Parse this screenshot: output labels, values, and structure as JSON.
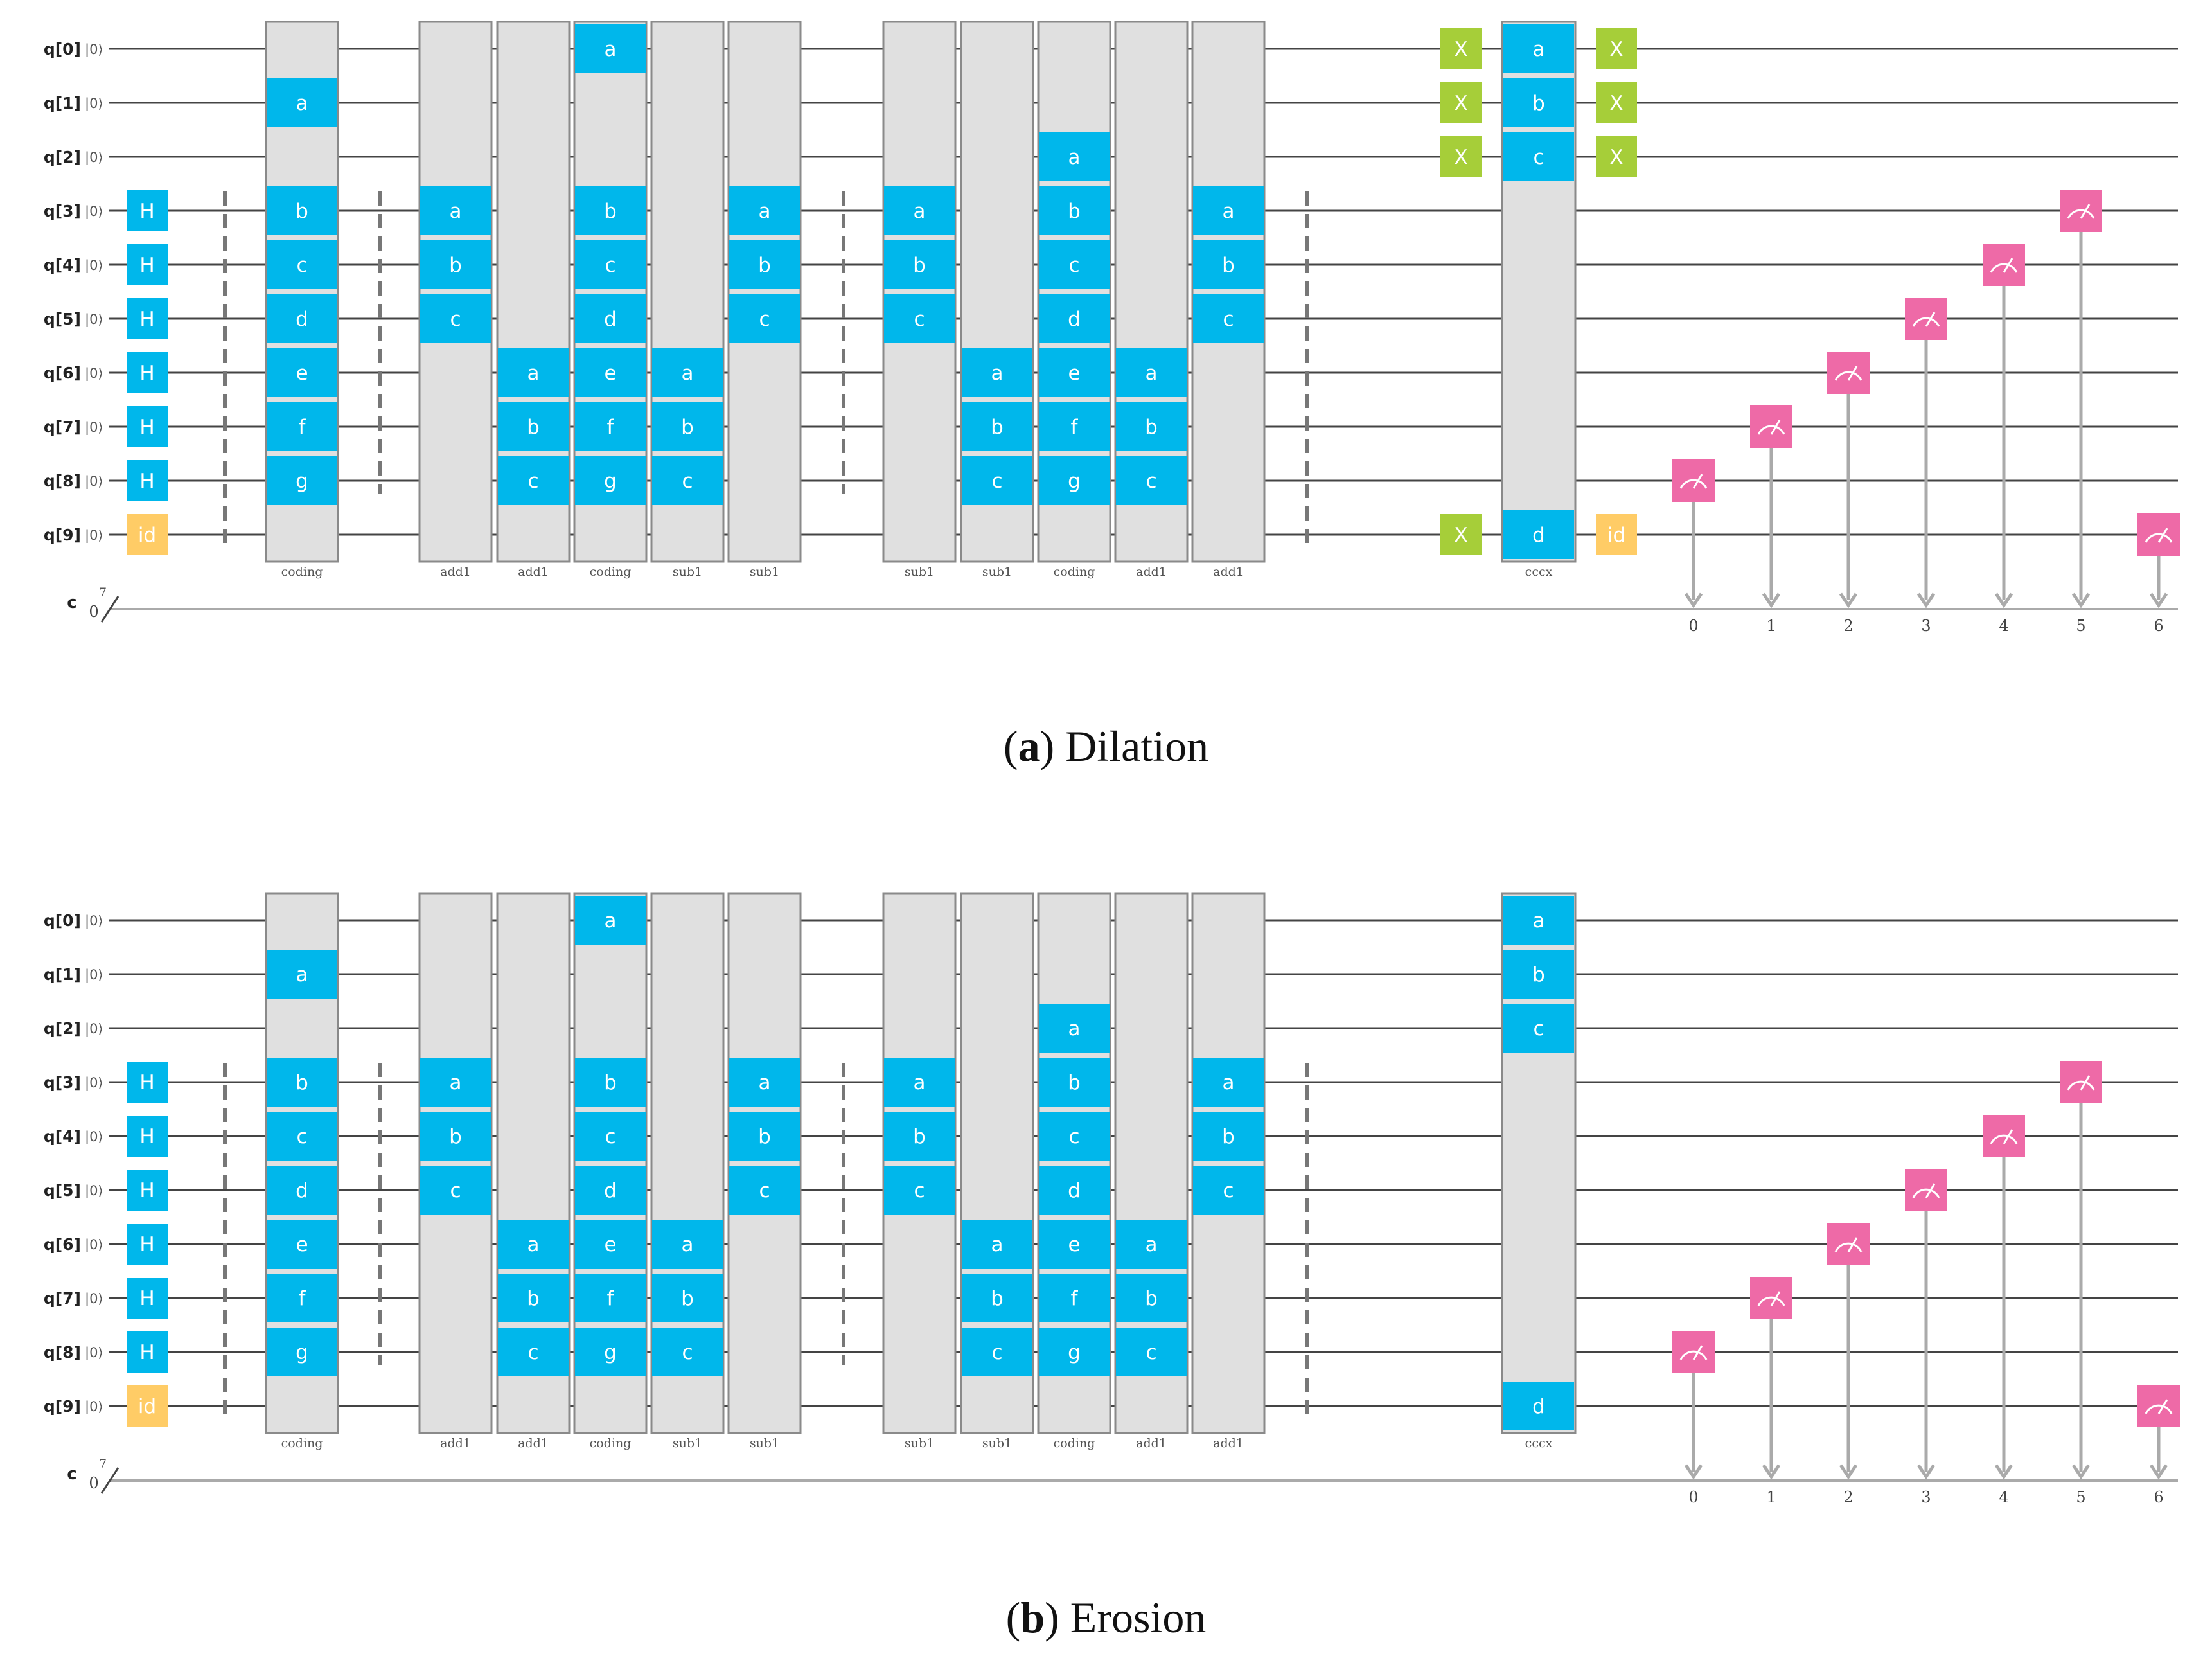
{
  "colors": {
    "wire": "#444444",
    "classical_wire": "#aaaaaa",
    "block_fill": "#e0e0e0",
    "block_stroke": "#8a8a8a",
    "gate_blue": "#00b7eb",
    "gate_orange": "#ffcc66",
    "gate_green": "#a6ce39",
    "gate_pink": "#ee6aa7",
    "barrier": "#777777",
    "text": "#222222"
  },
  "circuit": {
    "qubit_labels": [
      "q[0]",
      "q[1]",
      "q[2]",
      "q[3]",
      "q[4]",
      "q[5]",
      "q[6]",
      "q[7]",
      "q[8]",
      "q[9]"
    ],
    "init_state": "|0⟩",
    "classical_register": {
      "name": "c",
      "init": "0",
      "width": "7"
    },
    "measure_bits": [
      "0",
      "1",
      "2",
      "3",
      "4",
      "5",
      "6"
    ],
    "measure_qubits": [
      8,
      7,
      6,
      5,
      4,
      3,
      9
    ],
    "hadamard": {
      "label": "H",
      "qubits": [
        3,
        4,
        5,
        6,
        7,
        8
      ]
    },
    "identity": {
      "label": "id",
      "qubit": 9
    },
    "block_sequence": [
      {
        "name": "coding",
        "pins": [
          [
            "a",
            1
          ],
          [
            "b",
            3
          ],
          [
            "c",
            4
          ],
          [
            "d",
            5
          ],
          [
            "e",
            6
          ],
          [
            "f",
            7
          ],
          [
            "g",
            8
          ]
        ]
      },
      {
        "name": "add1",
        "pins": [
          [
            "a",
            3
          ],
          [
            "b",
            4
          ],
          [
            "c",
            5
          ]
        ]
      },
      {
        "name": "add1",
        "pins": [
          [
            "a",
            6
          ],
          [
            "b",
            7
          ],
          [
            "c",
            8
          ]
        ]
      },
      {
        "name": "coding",
        "pins": [
          [
            "a",
            0
          ],
          [
            "b",
            3
          ],
          [
            "c",
            4
          ],
          [
            "d",
            5
          ],
          [
            "e",
            6
          ],
          [
            "f",
            7
          ],
          [
            "g",
            8
          ]
        ]
      },
      {
        "name": "sub1",
        "pins": [
          [
            "a",
            6
          ],
          [
            "b",
            7
          ],
          [
            "c",
            8
          ]
        ]
      },
      {
        "name": "sub1",
        "pins": [
          [
            "a",
            3
          ],
          [
            "b",
            4
          ],
          [
            "c",
            5
          ]
        ]
      },
      {
        "name": "sub1",
        "pins": [
          [
            "a",
            3
          ],
          [
            "b",
            4
          ],
          [
            "c",
            5
          ]
        ]
      },
      {
        "name": "sub1",
        "pins": [
          [
            "a",
            6
          ],
          [
            "b",
            7
          ],
          [
            "c",
            8
          ]
        ]
      },
      {
        "name": "coding",
        "pins": [
          [
            "a",
            2
          ],
          [
            "b",
            3
          ],
          [
            "c",
            4
          ],
          [
            "d",
            5
          ],
          [
            "e",
            6
          ],
          [
            "f",
            7
          ],
          [
            "g",
            8
          ]
        ]
      },
      {
        "name": "add1",
        "pins": [
          [
            "a",
            6
          ],
          [
            "b",
            7
          ],
          [
            "c",
            8
          ]
        ]
      },
      {
        "name": "add1",
        "pins": [
          [
            "a",
            3
          ],
          [
            "b",
            4
          ],
          [
            "c",
            5
          ]
        ]
      }
    ],
    "cccx": {
      "name": "cccx",
      "pins": [
        [
          "a",
          0
        ],
        [
          "b",
          1
        ],
        [
          "c",
          2
        ],
        [
          "d",
          9
        ]
      ]
    }
  },
  "panels": [
    {
      "id": "a",
      "caption_letter": "a",
      "caption_text": ") Dilation",
      "x_gate_label": "X",
      "x_gates_before": [
        0,
        1,
        2,
        9
      ],
      "x_gates_after": [
        0,
        1,
        2
      ],
      "id_after": true
    },
    {
      "id": "b",
      "caption_letter": "b",
      "caption_text": ") Erosion",
      "x_gate_label": "X",
      "x_gates_before": [],
      "x_gates_after": [],
      "id_after": false
    }
  ]
}
